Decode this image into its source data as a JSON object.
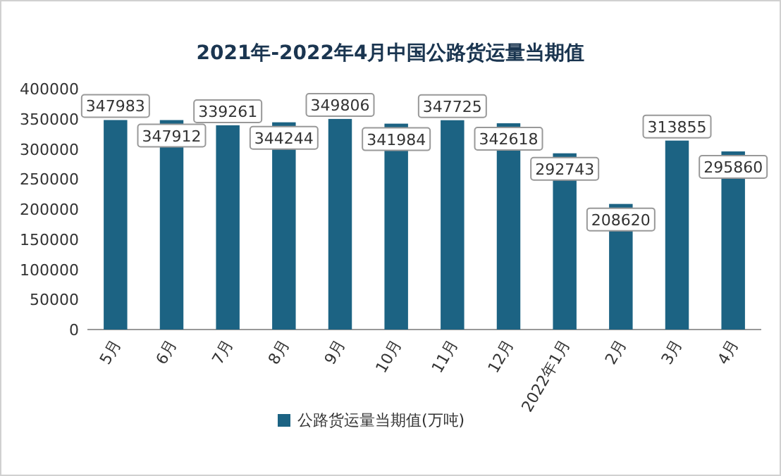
{
  "chart_data": {
    "type": "bar",
    "title": "2021年-2022年4月中国公路货运量当期值",
    "categories": [
      "5月",
      "6月",
      "7月",
      "8月",
      "9月",
      "10月",
      "11月",
      "12月",
      "2022年1月",
      "2月",
      "3月",
      "4月"
    ],
    "series": [
      {
        "name": "公路货运量当期值(万吨)",
        "color": "#1c6383",
        "values": [
          347983,
          347912,
          339261,
          344244,
          349806,
          341984,
          347725,
          342618,
          292743,
          208620,
          313855,
          295860
        ]
      }
    ],
    "ylim": [
      0,
      400000
    ],
    "yticks": [
      0,
      50000,
      100000,
      150000,
      200000,
      250000,
      300000,
      350000,
      400000
    ],
    "data_labels": true,
    "legend": "bottom",
    "grid": false
  }
}
